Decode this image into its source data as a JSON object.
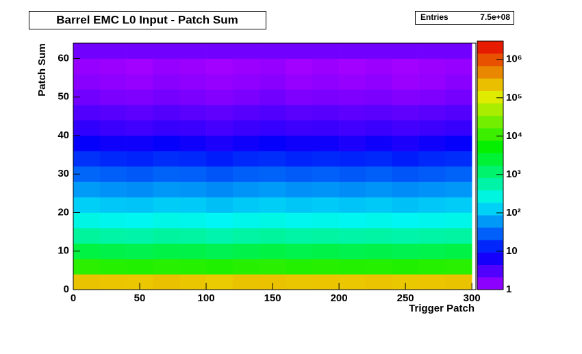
{
  "chart_data": {
    "type": "heatmap",
    "title": "Barrel EMC L0 Input - Patch Sum",
    "stats_label": "Entries",
    "stats_value": "7.5e+08",
    "xlabel": "Trigger Patch",
    "ylabel": "Patch Sum",
    "xlim": [
      0,
      303
    ],
    "ylim": [
      0,
      64
    ],
    "zlim": [
      1,
      3000000
    ],
    "zscale": "log",
    "xticks": [
      0,
      50,
      100,
      150,
      200,
      250,
      300
    ],
    "yticks": [
      0,
      10,
      20,
      30,
      40,
      50,
      60
    ],
    "zticks": [
      1,
      10,
      {
        "value": 100,
        "label": "10²"
      },
      {
        "value": 1000,
        "label": "10³"
      },
      {
        "value": 10000,
        "label": "10⁴"
      },
      {
        "value": 100000,
        "label": "10⁵"
      },
      {
        "value": 1000000,
        "label": "10⁶"
      }
    ],
    "xbins": [
      0,
      20,
      40,
      60,
      80,
      100,
      120,
      140,
      160,
      180,
      200,
      220,
      240,
      260,
      280,
      300
    ],
    "ybins": [
      0,
      4,
      8,
      12,
      16,
      20,
      24,
      28,
      32,
      36,
      40,
      44,
      48,
      52,
      56,
      60,
      64
    ],
    "z": [
      [
        210000,
        205000,
        198000,
        215000,
        202000,
        190000,
        208000,
        212000,
        200000,
        205000,
        199000,
        207000,
        195000,
        203000,
        210000
      ],
      [
        9000,
        8200,
        7800,
        8500,
        8100,
        7600,
        8300,
        8900,
        8000,
        8400,
        7900,
        8200,
        7700,
        8100,
        8600
      ],
      [
        2100,
        1900,
        1800,
        2000,
        1950,
        1700,
        1900,
        2050,
        1850,
        1950,
        1800,
        1900,
        1750,
        1850,
        2000
      ],
      [
        650,
        580,
        550,
        620,
        600,
        520,
        590,
        640,
        570,
        600,
        560,
        590,
        540,
        570,
        610
      ],
      [
        260,
        230,
        220,
        250,
        240,
        210,
        235,
        255,
        225,
        240,
        220,
        235,
        215,
        230,
        245
      ],
      [
        125,
        110,
        105,
        120,
        115,
        100,
        112,
        122,
        108,
        115,
        105,
        112,
        102,
        110,
        118
      ],
      [
        62,
        55,
        52,
        60,
        57,
        50,
        56,
        61,
        54,
        57,
        52,
        56,
        51,
        55,
        59
      ],
      [
        31,
        28,
        26,
        30,
        29,
        25,
        28,
        30,
        27,
        29,
        26,
        28,
        25,
        27,
        30
      ],
      [
        16,
        14,
        13,
        15,
        14,
        12,
        14,
        15,
        13,
        14,
        13,
        14,
        12,
        14,
        15
      ],
      [
        8,
        7,
        7,
        8,
        7,
        6,
        7,
        8,
        7,
        7,
        6,
        7,
        6,
        7,
        8
      ],
      [
        4.5,
        4,
        3.8,
        4.2,
        4,
        3.5,
        4,
        4.3,
        3.9,
        4,
        3.7,
        4,
        3.6,
        3.9,
        4.2
      ],
      [
        3,
        2.8,
        2.6,
        2.9,
        2.7,
        2.5,
        2.8,
        3,
        2.7,
        2.8,
        2.6,
        2.7,
        2.5,
        2.7,
        2.9
      ],
      [
        2,
        1.8,
        1.7,
        1.9,
        1.8,
        1.6,
        1.8,
        2,
        1.7,
        1.8,
        1.7,
        1.8,
        1.6,
        1.7,
        1.9
      ],
      [
        1.5,
        1.4,
        1.3,
        1.5,
        1.4,
        1.3,
        1.4,
        1.5,
        1.3,
        1.4,
        1.3,
        1.4,
        1.2,
        1.3,
        1.5
      ],
      [
        1.3,
        1.2,
        1.1,
        1.3,
        1.2,
        1.1,
        1.2,
        1.3,
        1.1,
        1.2,
        1.1,
        1.2,
        1.1,
        1.2,
        1.3
      ],
      [
        2,
        2,
        2,
        2,
        2,
        2,
        2,
        2,
        2,
        2,
        2,
        2,
        2,
        2,
        2
      ]
    ]
  }
}
